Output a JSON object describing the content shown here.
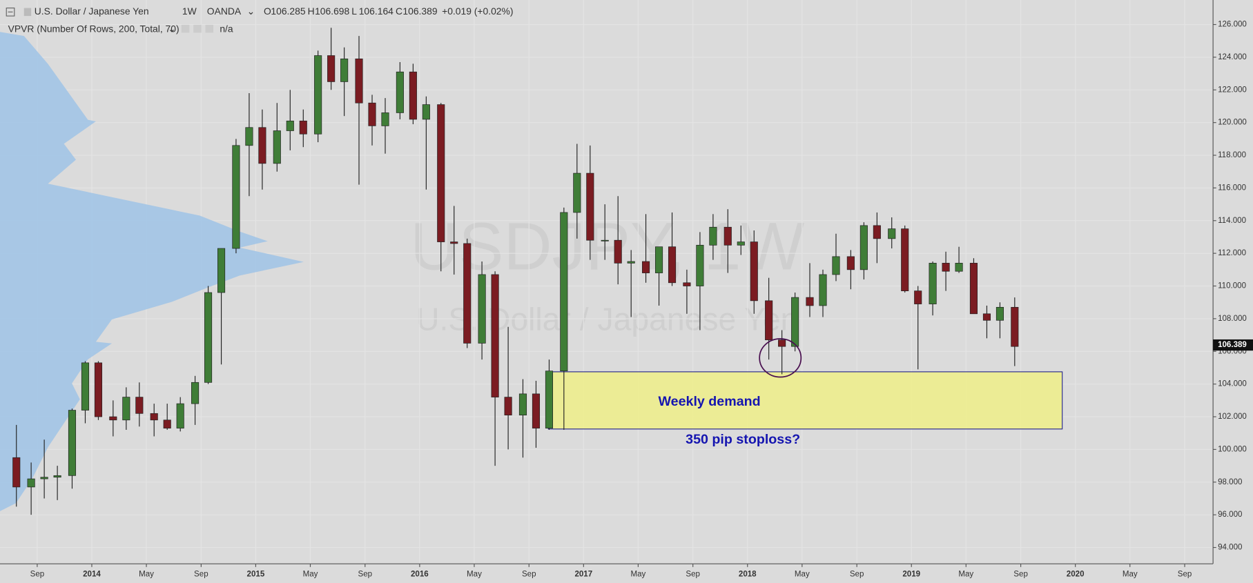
{
  "header": {
    "symbol": "U.S. Dollar / Japanese Yen",
    "interval": "1W",
    "broker": "OANDA",
    "ohlc": [
      {
        "key": "O",
        "value": "106.285"
      },
      {
        "key": "H",
        "value": "106.698"
      },
      {
        "key": "L",
        "value": "106.164"
      },
      {
        "key": "C",
        "value": "106.389"
      }
    ],
    "change": "+0.019 (+0.02%)",
    "indicator": "VPVR (Number Of Rows, 200, Total, 70)",
    "indicator_value": "n/a"
  },
  "chart_data": {
    "type": "candlestick",
    "watermark": [
      "USDJPY, 1W",
      "U.S. Dollar / Japanese Yen"
    ],
    "x": [
      2013.54,
      2013.63,
      2013.71,
      2013.79,
      2013.88,
      2013.96,
      2014.04,
      2014.13,
      2014.21,
      2014.29,
      2014.38,
      2014.46,
      2014.54,
      2014.63,
      2014.71,
      2014.79,
      2014.88,
      2014.96,
      2015.04,
      2015.13,
      2015.21,
      2015.29,
      2015.38,
      2015.46,
      2015.54,
      2015.63,
      2015.71,
      2015.79,
      2015.88,
      2015.96,
      2016.04,
      2016.13,
      2016.21,
      2016.29,
      2016.38,
      2016.46,
      2016.54,
      2016.63,
      2016.71,
      2016.79,
      2016.88,
      2016.96,
      2017.04,
      2017.13,
      2017.21,
      2017.29,
      2017.38,
      2017.46,
      2017.54,
      2017.63,
      2017.71,
      2017.79,
      2017.88,
      2017.96,
      2018.04,
      2018.13,
      2018.21,
      2018.29,
      2018.38,
      2018.46,
      2018.54,
      2018.63,
      2018.71,
      2018.79,
      2018.88,
      2018.96,
      2019.04,
      2019.13,
      2019.21,
      2019.29,
      2019.38,
      2019.46,
      2019.54,
      2019.63
    ],
    "open": [
      99.5,
      97.7,
      98.2,
      98.3,
      98.4,
      102.4,
      105.3,
      102.0,
      101.8,
      103.2,
      102.2,
      101.8,
      101.3,
      102.8,
      104.1,
      109.6,
      112.3,
      118.6,
      119.7,
      117.5,
      119.5,
      120.1,
      119.3,
      124.1,
      122.5,
      123.9,
      121.2,
      119.8,
      120.6,
      123.1,
      120.2,
      121.1,
      112.7,
      112.6,
      106.5,
      110.7,
      103.2,
      102.1,
      103.4,
      101.3,
      104.8,
      114.5,
      116.9,
      112.8,
      112.8,
      111.4,
      111.5,
      110.8,
      112.4,
      110.2,
      110.0,
      112.5,
      113.6,
      112.5,
      112.7,
      109.1,
      106.7,
      106.3,
      109.3,
      108.8,
      110.7,
      111.8,
      111.0,
      113.7,
      112.9,
      113.5,
      109.7,
      108.9,
      111.4,
      110.9,
      111.4,
      108.3,
      107.9,
      108.7
    ],
    "high": [
      101.5,
      99.2,
      100.6,
      99.0,
      102.5,
      105.4,
      105.4,
      103.0,
      103.8,
      104.1,
      102.8,
      102.8,
      103.2,
      104.5,
      110.0,
      112.3,
      119.0,
      121.8,
      120.8,
      121.2,
      122.0,
      120.8,
      124.4,
      125.8,
      124.6,
      125.3,
      121.7,
      121.5,
      123.7,
      123.6,
      121.6,
      121.2,
      114.9,
      112.9,
      111.5,
      110.9,
      107.5,
      104.3,
      104.2,
      105.5,
      114.8,
      118.7,
      118.6,
      115.0,
      115.5,
      112.2,
      114.4,
      112.4,
      114.5,
      111.0,
      113.3,
      114.4,
      114.7,
      113.7,
      113.4,
      110.5,
      107.3,
      109.6,
      111.4,
      111.0,
      113.2,
      112.2,
      113.9,
      114.5,
      114.2,
      113.7,
      110.0,
      111.5,
      112.1,
      112.4,
      111.7,
      108.8,
      109.0,
      109.3
    ],
    "low": [
      96.5,
      96.0,
      97.0,
      96.9,
      97.6,
      101.6,
      101.8,
      100.8,
      101.2,
      101.4,
      100.8,
      101.2,
      101.1,
      101.5,
      104.0,
      105.2,
      112.0,
      115.5,
      115.9,
      117.0,
      118.3,
      118.5,
      118.8,
      122.0,
      120.4,
      116.2,
      118.6,
      118.1,
      120.2,
      119.9,
      115.9,
      110.9,
      110.7,
      106.2,
      105.5,
      99.0,
      100.0,
      99.5,
      100.1,
      101.2,
      101.2,
      112.9,
      111.6,
      111.6,
      110.1,
      108.1,
      110.2,
      108.8,
      110.0,
      108.3,
      107.3,
      111.6,
      110.8,
      111.9,
      108.3,
      105.5,
      104.6,
      106.0,
      108.1,
      108.1,
      110.3,
      109.8,
      110.4,
      111.4,
      112.3,
      109.6,
      104.9,
      108.2,
      109.7,
      110.8,
      108.3,
      106.8,
      106.8,
      105.1
    ],
    "close": [
      97.7,
      98.2,
      98.3,
      98.4,
      102.4,
      105.3,
      102.0,
      101.8,
      103.2,
      102.2,
      101.8,
      101.3,
      102.8,
      104.1,
      109.6,
      112.3,
      118.6,
      119.7,
      117.5,
      119.5,
      120.1,
      119.3,
      124.1,
      122.5,
      123.9,
      121.2,
      119.8,
      120.6,
      123.1,
      120.2,
      121.1,
      112.7,
      112.6,
      106.5,
      110.7,
      103.2,
      102.1,
      103.4,
      101.3,
      104.8,
      114.5,
      116.9,
      112.8,
      112.8,
      111.4,
      111.5,
      110.8,
      112.4,
      110.2,
      110.0,
      112.5,
      113.6,
      112.5,
      112.7,
      109.1,
      106.7,
      106.3,
      109.3,
      108.8,
      110.7,
      111.8,
      111.0,
      113.7,
      112.9,
      113.5,
      109.7,
      108.9,
      111.4,
      110.9,
      111.4,
      108.3,
      107.9,
      108.7,
      106.3
    ],
    "up_color": "#3f7d37",
    "down_color": "#7b1c22",
    "xlim": [
      2013.44,
      2020.84
    ],
    "xticks": [
      {
        "value": 2013.667,
        "label": "Sep"
      },
      {
        "value": 2014.0,
        "label": "2014"
      },
      {
        "value": 2014.333,
        "label": "May"
      },
      {
        "value": 2014.667,
        "label": "Sep"
      },
      {
        "value": 2015.0,
        "label": "2015"
      },
      {
        "value": 2015.333,
        "label": "May"
      },
      {
        "value": 2015.667,
        "label": "Sep"
      },
      {
        "value": 2016.0,
        "label": "2016"
      },
      {
        "value": 2016.333,
        "label": "May"
      },
      {
        "value": 2016.667,
        "label": "Sep"
      },
      {
        "value": 2017.0,
        "label": "2017"
      },
      {
        "value": 2017.333,
        "label": "May"
      },
      {
        "value": 2017.667,
        "label": "Sep"
      },
      {
        "value": 2018.0,
        "label": "2018"
      },
      {
        "value": 2018.333,
        "label": "May"
      },
      {
        "value": 2018.667,
        "label": "Sep"
      },
      {
        "value": 2019.0,
        "label": "2019"
      },
      {
        "value": 2019.333,
        "label": "May"
      },
      {
        "value": 2019.667,
        "label": "Sep"
      },
      {
        "value": 2020.0,
        "label": "2020"
      },
      {
        "value": 2020.333,
        "label": "May"
      },
      {
        "value": 2020.667,
        "label": "Sep"
      }
    ],
    "ylim": [
      93.0,
      127.5
    ],
    "yticks": [
      {
        "value": 94,
        "label": "94.000"
      },
      {
        "value": 96,
        "label": "96.000"
      },
      {
        "value": 98,
        "label": "98.000"
      },
      {
        "value": 100,
        "label": "100.000"
      },
      {
        "value": 102,
        "label": "102.000"
      },
      {
        "value": 104,
        "label": "104.000"
      },
      {
        "value": 106,
        "label": "106.000"
      },
      {
        "value": 108,
        "label": "108.000"
      },
      {
        "value": 110,
        "label": "110.000"
      },
      {
        "value": 112,
        "label": "112.000"
      },
      {
        "value": 114,
        "label": "114.000"
      },
      {
        "value": 116,
        "label": "116.000"
      },
      {
        "value": 118,
        "label": "118.000"
      },
      {
        "value": 120,
        "label": "120.000"
      },
      {
        "value": 122,
        "label": "122.000"
      },
      {
        "value": 124,
        "label": "124.000"
      },
      {
        "value": 126,
        "label": "126.000"
      }
    ],
    "last_price": 106.389,
    "grid": true,
    "zone": {
      "x": [
        2016.785,
        2019.92
      ],
      "y": [
        104.75,
        101.25
      ],
      "color": "#eeee88",
      "label": "Weekly demand",
      "note": "350 pip stoploss?"
    },
    "circle": {
      "x": 2018.2,
      "y": 105.6
    }
  }
}
